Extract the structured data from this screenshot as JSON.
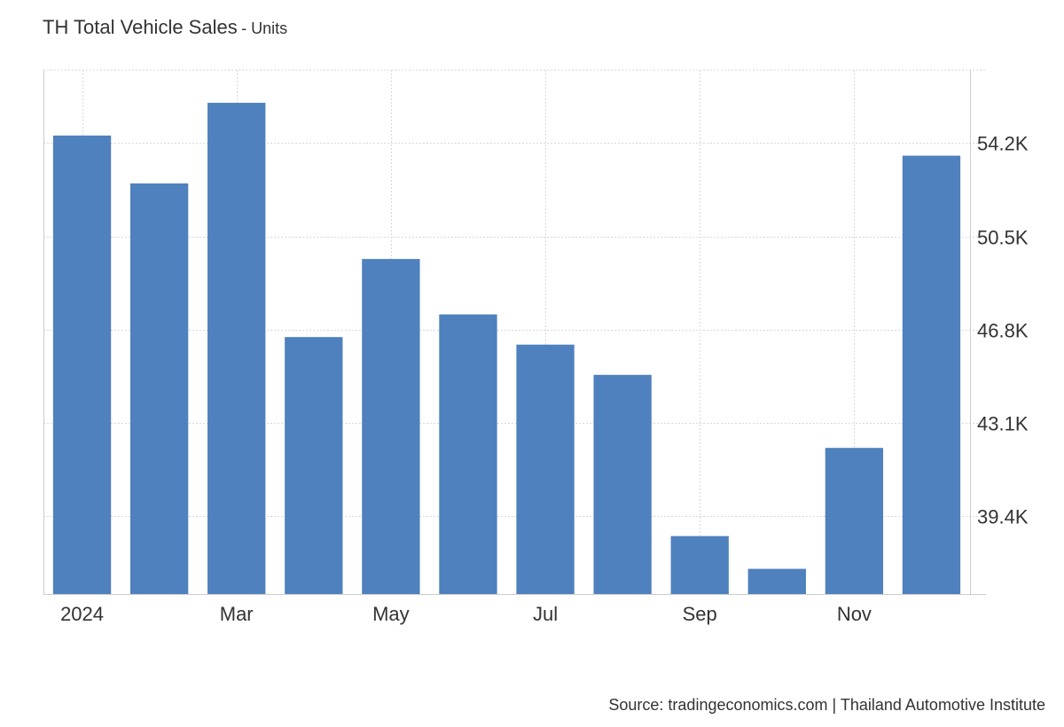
{
  "title": "TH Total Vehicle Sales",
  "title_suffix": "- Units",
  "source": "Source: tradingeconomics.com | Thailand Automotive Institute",
  "colors": {
    "bar": "#4e81bd",
    "grid": "#d9d9d9",
    "axis": "#cccccc",
    "text": "#333333"
  },
  "chart_data": {
    "type": "bar",
    "categories": [
      "Jan 2024",
      "Feb 2024",
      "Mar 2024",
      "Apr 2024",
      "May 2024",
      "Jun 2024",
      "Jul 2024",
      "Aug 2024",
      "Sep 2024",
      "Oct 2024",
      "Nov 2024",
      "Dec 2024"
    ],
    "x_tick_labels": [
      "2024",
      "Mar",
      "May",
      "Jul",
      "Sep",
      "Nov"
    ],
    "values": [
      54.5,
      52.6,
      55.8,
      46.5,
      49.6,
      47.4,
      46.2,
      45.0,
      38.6,
      37.3,
      42.1,
      53.7
    ],
    "y_ticks": [
      39.4,
      43.1,
      46.8,
      50.5,
      54.2
    ],
    "y_tick_suffix": "K",
    "ylim": [
      36.3,
      57.1
    ],
    "y_axis_side": "right",
    "grid": true,
    "legend": "none"
  }
}
